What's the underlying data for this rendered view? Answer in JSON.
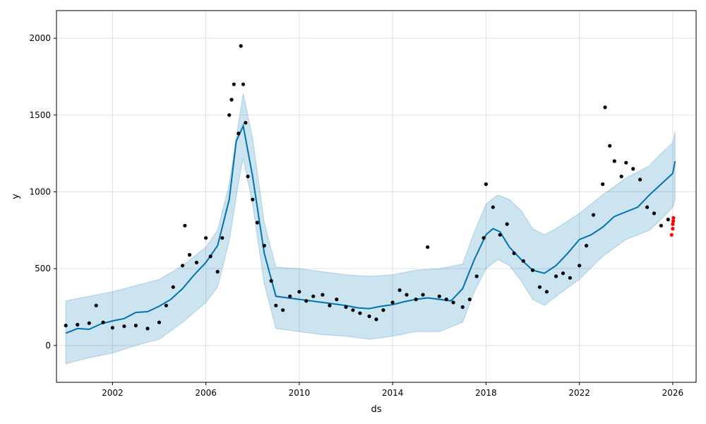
{
  "chart_data": {
    "type": "line",
    "title": "",
    "xlabel": "ds",
    "ylabel": "y",
    "xlim": [
      1999.6,
      2027.0
    ],
    "ylim": [
      -240,
      2180
    ],
    "grid": true,
    "legend": "none",
    "x_ticks": [
      "2002",
      "2006",
      "2010",
      "2014",
      "2018",
      "2022",
      "2026"
    ],
    "y_ticks": [
      "0",
      "500",
      "1000",
      "1500",
      "2000"
    ],
    "colors": {
      "forecast": "#0072B2",
      "interval": "#0072B2",
      "observed": "#000000",
      "holdout": "#ff0000",
      "grid": "#e0e0e0"
    },
    "series": [
      {
        "role": "forecast",
        "x": [
          2000.0,
          2000.5,
          2001.0,
          2001.5,
          2002.0,
          2002.5,
          2003.0,
          2003.5,
          2004.0,
          2004.5,
          2005.0,
          2005.5,
          2006.0,
          2006.5,
          2007.0,
          2007.3,
          2007.6,
          2008.0,
          2008.5,
          2009.0,
          2009.5,
          2010.0,
          2010.5,
          2011.0,
          2011.5,
          2012.0,
          2012.5,
          2013.0,
          2013.5,
          2014.0,
          2014.5,
          2015.0,
          2015.5,
          2016.0,
          2016.5,
          2017.0,
          2017.5,
          2018.0,
          2018.3,
          2018.6,
          2019.0,
          2019.5,
          2020.0,
          2020.5,
          2021.0,
          2021.5,
          2022.0,
          2022.5,
          2023.0,
          2023.5,
          2024.0,
          2024.5,
          2025.0,
          2025.5,
          2026.0,
          2026.1
        ],
        "y": [
          80,
          110,
          105,
          140,
          160,
          175,
          215,
          220,
          255,
          300,
          370,
          460,
          540,
          650,
          950,
          1330,
          1430,
          1100,
          600,
          320,
          310,
          300,
          290,
          280,
          270,
          260,
          245,
          240,
          255,
          265,
          285,
          300,
          310,
          300,
          290,
          370,
          560,
          720,
          760,
          740,
          640,
          560,
          490,
          470,
          520,
          600,
          690,
          720,
          770,
          840,
          870,
          900,
          980,
          1050,
          1120,
          1200
        ]
      },
      {
        "role": "interval_upper",
        "x": [
          2000.0,
          2001.0,
          2002.0,
          2003.0,
          2004.0,
          2005.0,
          2006.0,
          2006.5,
          2007.0,
          2007.4,
          2007.6,
          2008.0,
          2008.5,
          2009.0,
          2010.0,
          2011.0,
          2012.0,
          2013.0,
          2014.0,
          2015.0,
          2016.0,
          2017.0,
          2017.5,
          2018.0,
          2018.5,
          2019.0,
          2019.5,
          2020.0,
          2020.5,
          2021.0,
          2022.0,
          2023.0,
          2024.0,
          2025.0,
          2025.5,
          2026.0,
          2026.1
        ],
        "y": [
          290,
          320,
          350,
          390,
          430,
          520,
          640,
          750,
          1050,
          1450,
          1640,
          1350,
          800,
          510,
          500,
          480,
          460,
          450,
          460,
          490,
          500,
          530,
          740,
          920,
          980,
          950,
          880,
          760,
          720,
          760,
          860,
          980,
          1090,
          1170,
          1250,
          1320,
          1390
        ]
      },
      {
        "role": "interval_lower",
        "x": [
          2000.0,
          2001.0,
          2002.0,
          2003.0,
          2004.0,
          2005.0,
          2006.0,
          2006.5,
          2007.0,
          2007.4,
          2007.6,
          2008.0,
          2008.5,
          2009.0,
          2010.0,
          2011.0,
          2012.0,
          2013.0,
          2014.0,
          2015.0,
          2016.0,
          2017.0,
          2017.5,
          2018.0,
          2018.5,
          2019.0,
          2019.5,
          2020.0,
          2020.5,
          2021.0,
          2022.0,
          2023.0,
          2024.0,
          2025.0,
          2025.5,
          2026.0,
          2026.1
        ],
        "y": [
          -120,
          -80,
          -50,
          0,
          40,
          150,
          280,
          380,
          680,
          1060,
          1220,
          920,
          400,
          110,
          90,
          70,
          60,
          40,
          60,
          90,
          90,
          150,
          350,
          500,
          560,
          520,
          420,
          300,
          260,
          320,
          430,
          580,
          690,
          750,
          820,
          900,
          950
        ]
      },
      {
        "role": "observed",
        "x": [
          2000.0,
          2000.5,
          2001.0,
          2001.3,
          2001.6,
          2002.0,
          2002.5,
          2003.0,
          2003.5,
          2004.0,
          2004.3,
          2004.6,
          2005.0,
          2005.1,
          2005.3,
          2005.6,
          2006.0,
          2006.2,
          2006.5,
          2006.7,
          2007.0,
          2007.1,
          2007.2,
          2007.4,
          2007.5,
          2007.6,
          2007.7,
          2007.8,
          2008.0,
          2008.2,
          2008.5,
          2008.8,
          2009.0,
          2009.3,
          2009.6,
          2010.0,
          2010.3,
          2010.6,
          2011.0,
          2011.3,
          2011.6,
          2012.0,
          2012.3,
          2012.6,
          2013.0,
          2013.3,
          2013.6,
          2014.0,
          2014.3,
          2014.6,
          2015.0,
          2015.3,
          2015.5,
          2016.0,
          2016.3,
          2016.6,
          2017.0,
          2017.3,
          2017.6,
          2017.9,
          2018.0,
          2018.3,
          2018.6,
          2018.9,
          2019.2,
          2019.6,
          2020.0,
          2020.3,
          2020.6,
          2021.0,
          2021.3,
          2021.6,
          2022.0,
          2022.3,
          2022.6,
          2023.0,
          2023.1,
          2023.3,
          2023.5,
          2023.8,
          2024.0,
          2024.3,
          2024.6,
          2024.9,
          2025.2,
          2025.5,
          2025.8
        ],
        "y": [
          130,
          135,
          145,
          260,
          150,
          115,
          125,
          130,
          110,
          150,
          260,
          380,
          520,
          780,
          590,
          540,
          700,
          580,
          480,
          700,
          1500,
          1600,
          1700,
          1380,
          1950,
          1700,
          1450,
          1100,
          950,
          800,
          650,
          420,
          260,
          230,
          320,
          350,
          290,
          320,
          330,
          260,
          300,
          250,
          230,
          210,
          190,
          170,
          230,
          280,
          360,
          330,
          300,
          330,
          640,
          320,
          300,
          280,
          250,
          300,
          450,
          700,
          1050,
          900,
          720,
          790,
          600,
          550,
          490,
          380,
          350,
          450,
          470,
          440,
          520,
          650,
          850,
          1050,
          1550,
          1300,
          1200,
          1100,
          1190,
          1150,
          1080,
          900,
          860,
          780,
          820
        ]
      },
      {
        "role": "holdout",
        "x": [
          2025.95,
          2026.0,
          2026.0,
          2026.02,
          2026.03
        ],
        "y": [
          720,
          760,
          790,
          810,
          830
        ]
      }
    ]
  }
}
